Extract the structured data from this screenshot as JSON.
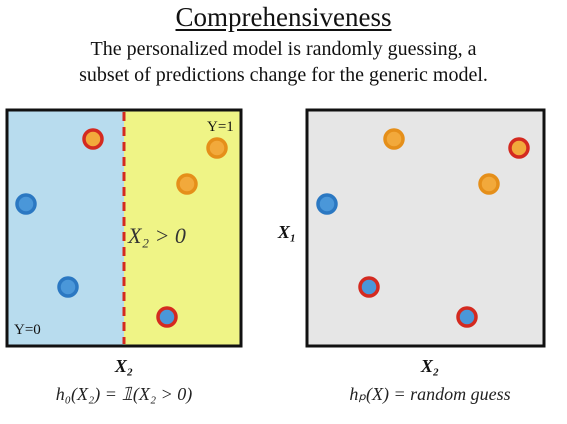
{
  "title": "Comprehensiveness",
  "subtitle_line1": "The personalized model is randomly guessing, a",
  "subtitle_line2": "subset of predictions change for the generic model.",
  "left_panel": {
    "label_y1": "Y=1",
    "label_y0": "Y=0",
    "boundary_label": "X₂ > 0",
    "x_axis_label": "X₂",
    "caption": "h₀(X₂) = 𝟙(X₂ > 0)",
    "region_left_color": "#b8dcee",
    "region_right_color": "#eff486",
    "boundary_color": "#d42a20",
    "points": [
      {
        "fill": "#f2a93b",
        "ring": "#d42a20"
      },
      {
        "fill": "#f2a93b",
        "ring": "#e58f1a"
      },
      {
        "fill": "#f2a93b",
        "ring": "#e58f1a"
      },
      {
        "fill": "#4a97d9",
        "ring": "#2b78c2"
      },
      {
        "fill": "#4a97d9",
        "ring": "#2b78c2"
      },
      {
        "fill": "#4a97d9",
        "ring": "#d42a20"
      }
    ]
  },
  "right_panel": {
    "y_axis_label": "X₁",
    "x_axis_label": "X₂",
    "caption": "hₚ(X) = random guess",
    "background_color": "#e6e6e6",
    "points": [
      {
        "fill": "#f2a93b",
        "ring": "#e58f1a"
      },
      {
        "fill": "#f2a93b",
        "ring": "#d42a20"
      },
      {
        "fill": "#f2a93b",
        "ring": "#e58f1a"
      },
      {
        "fill": "#4a97d9",
        "ring": "#2b78c2"
      },
      {
        "fill": "#4a97d9",
        "ring": "#d42a20"
      },
      {
        "fill": "#4a97d9",
        "ring": "#d42a20"
      }
    ]
  }
}
